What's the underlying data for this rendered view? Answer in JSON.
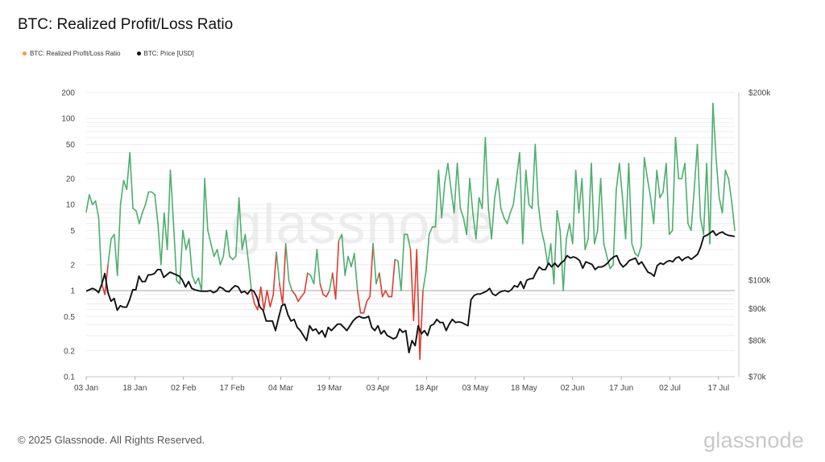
{
  "title": "BTC: Realized Profit/Loss Ratio",
  "legend": [
    {
      "label": "BTC: Realized Profit/Loss Ratio",
      "color": "#f39c3a"
    },
    {
      "label": "BTC: Price [USD]",
      "color": "#111111"
    }
  ],
  "watermark": "glassnode",
  "footer": "© 2025 Glassnode. All Rights Reserved.",
  "brand": "glassnode",
  "colors": {
    "profit": "#4caf6e",
    "loss": "#e03b2f",
    "price": "#111111",
    "grid": "#e6e6e6",
    "baseline": "#9a9a9a"
  },
  "chart_data": {
    "type": "line",
    "title": "BTC: Realized Profit/Loss Ratio",
    "x_range": [
      "2025-01-03",
      "2025-07-22"
    ],
    "x_ticks": [
      "03 Jan",
      "18 Jan",
      "02 Feb",
      "17 Feb",
      "04 Mar",
      "19 Mar",
      "03 Apr",
      "18 Apr",
      "03 May",
      "18 May",
      "02 Jun",
      "17 Jun",
      "02 Jul",
      "17 Jul"
    ],
    "y_left": {
      "scale": "log",
      "range": [
        0.1,
        200
      ],
      "ticks": [
        0.1,
        0.2,
        0.5,
        1,
        2,
        5,
        10,
        20,
        50,
        100,
        200
      ],
      "tick_labels": [
        "0.1",
        "0.2",
        "0.5",
        "1",
        "2",
        "5",
        "10",
        "20",
        "50",
        "100",
        "200"
      ]
    },
    "y_right": {
      "scale": "log",
      "range": [
        70000,
        200000
      ],
      "ticks": [
        70000,
        80000,
        90000,
        100000,
        200000
      ],
      "tick_labels": [
        "$70k",
        "$80k",
        "$90k",
        "$100k",
        "$200k"
      ]
    },
    "grid": true,
    "baseline": 1,
    "series": [
      {
        "name": "BTC: Realized Profit/Loss Ratio",
        "axis": "left",
        "values": [
          8.2,
          13,
          10,
          11,
          7,
          1.2,
          0.9,
          2,
          4,
          4.5,
          1.5,
          10,
          19,
          15,
          40,
          9,
          8.5,
          6,
          8,
          10,
          14,
          14,
          13,
          6,
          2,
          8,
          3,
          25,
          6,
          1.3,
          1.2,
          5,
          3,
          4,
          1.5,
          1.2,
          1.4,
          1.0,
          20,
          5,
          3.5,
          2.5,
          3,
          2,
          2.5,
          5,
          2.5,
          2.3,
          2.5,
          12,
          3,
          4.5,
          2.2,
          1,
          0.7,
          0.6,
          1.1,
          0.6,
          1.0,
          0.65,
          0.9,
          2.8,
          1.2,
          0.7,
          3.5,
          1.3,
          1.0,
          0.9,
          0.75,
          0.85,
          0.95,
          1.6,
          1.5,
          1.2,
          3,
          1.2,
          0.9,
          0.85,
          1.0,
          1.6,
          0.8,
          3.8,
          4.5,
          1.5,
          2.5,
          1.9,
          2.7,
          1.0,
          0.55,
          0.55,
          0.75,
          0.85,
          3.5,
          1.2,
          1.6,
          0.85,
          1.0,
          0.85,
          0.85,
          2.3,
          2.2,
          1.0,
          4.5,
          4.5,
          3,
          0.45,
          3,
          0.16,
          1,
          1.7,
          4.5,
          5.5,
          5.5,
          25,
          7,
          18,
          30,
          15,
          8,
          30,
          9,
          7,
          4.5,
          20,
          8,
          4,
          12,
          9,
          60,
          9,
          4,
          12,
          20,
          9,
          7,
          6,
          8,
          10,
          20,
          40,
          3.5,
          25,
          10,
          9,
          50,
          10,
          5,
          3.5,
          2,
          3.5,
          1.2,
          8.5,
          5,
          1.0,
          4,
          6,
          3.5,
          25,
          8,
          20,
          3,
          4,
          30,
          3.5,
          5,
          20,
          3.5,
          2.5,
          1.8,
          2,
          15,
          30,
          12,
          4,
          30,
          3.5,
          2.7,
          2.5,
          3.3,
          35,
          20,
          12,
          6,
          25,
          12,
          14,
          30,
          4.5,
          5,
          60,
          20,
          20,
          30,
          6,
          5,
          15,
          50,
          7,
          4.5,
          30,
          3.5,
          150,
          35,
          12,
          8,
          25,
          20,
          11,
          5
        ],
        "color": "#4caf6e"
      },
      {
        "name": "BTC: Price [USD]",
        "axis": "right",
        "values": [
          96000,
          96500,
          97000,
          96500,
          95500,
          98500,
          102500,
          95500,
          92500,
          93500,
          89500,
          91000,
          90500,
          90500,
          93000,
          96500,
          96500,
          101500,
          99500,
          99500,
          102000,
          102000,
          102500,
          104000,
          104000,
          101000,
          102000,
          103000,
          102500,
          102000,
          101500,
          100000,
          97500,
          99500,
          97000,
          96500,
          96200,
          96000,
          96000,
          96000,
          96200,
          95500,
          96000,
          97500,
          97000,
          96000,
          95800,
          97000,
          98000,
          97500,
          95500,
          96000,
          95000,
          96500,
          96000,
          94000,
          90500,
          89500,
          86000,
          86000,
          86000,
          83000,
          87000,
          91000,
          91500,
          88000,
          86000,
          86500,
          84000,
          83000,
          81500,
          80000,
          84500,
          83000,
          83500,
          82000,
          83000,
          81000,
          84000,
          83000,
          84000,
          85000,
          85000,
          84000,
          83000,
          84500,
          86000,
          87000,
          87500,
          87000,
          87000,
          87500,
          84000,
          83000,
          84500,
          82000,
          83000,
          81500,
          81000,
          80500,
          81000,
          83500,
          82500,
          83000,
          76500,
          80000,
          78500,
          84500,
          82000,
          83000,
          81500,
          84500,
          85000,
          86500,
          85500,
          85500,
          83000,
          85000,
          86500,
          85500,
          85700,
          85500,
          85000,
          84500,
          93000,
          94500,
          95000,
          95000,
          95500,
          96000,
          97000,
          95000,
          94500,
          95500,
          96000,
          96200,
          95800,
          96500,
          98000,
          97500,
          99500,
          97000,
          100000,
          100500,
          100600,
          103000,
          105000,
          104000,
          104000,
          106500,
          105000,
          106500,
          105000,
          106500,
          107500,
          109500,
          108500,
          109000,
          108500,
          107500,
          104500,
          107000,
          106500,
          106000,
          104000,
          105000,
          105000,
          105500,
          106500,
          108000,
          109000,
          109500,
          106500,
          105000,
          106000,
          107500,
          108000,
          108500,
          106000,
          107000,
          105000,
          103000,
          102500,
          101500,
          105500,
          106500,
          106000,
          107000,
          107500,
          107000,
          108500,
          109000,
          107500,
          108500,
          109000,
          108000,
          109000,
          110000,
          113000,
          117500,
          118000,
          119000,
          120000,
          118000,
          119000,
          119500,
          118500,
          118000,
          117800,
          117500
        ]
      }
    ]
  }
}
